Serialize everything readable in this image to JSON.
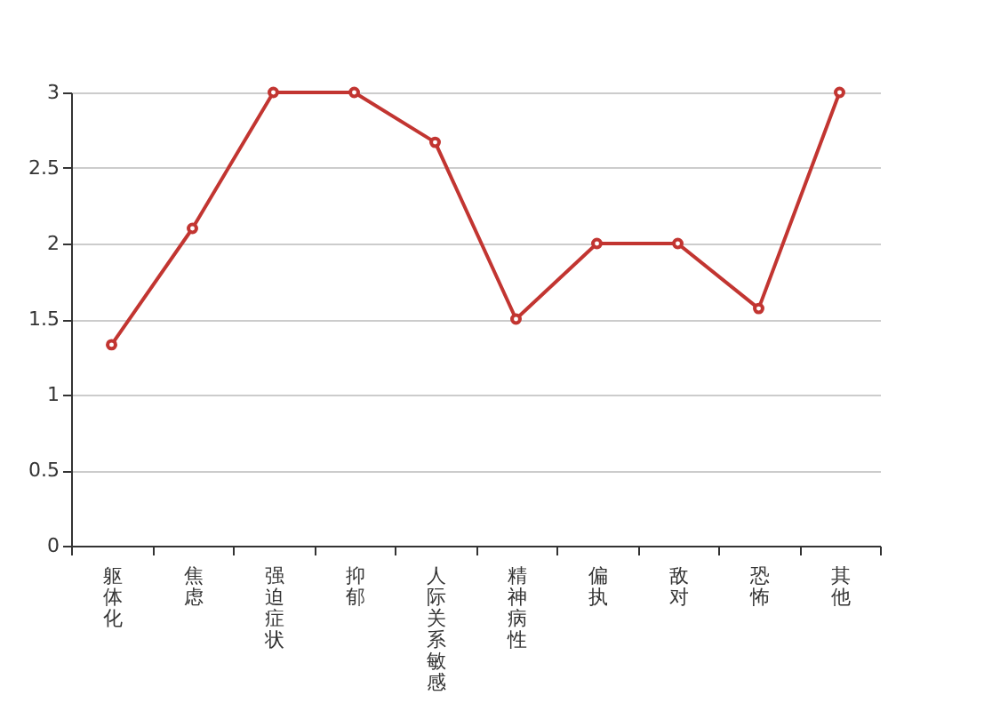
{
  "chart_data": {
    "type": "line",
    "categories": [
      "躯体化",
      "焦虑",
      "强迫症状",
      "抑郁",
      "人际关系敏感",
      "精神病性",
      "偏执",
      "敌对",
      "恐怖",
      "其他"
    ],
    "series": [
      {
        "color": "#c23531",
        "values": [
          1.33,
          2.1,
          3,
          3,
          2.67,
          1.5,
          2,
          2,
          1.57,
          3
        ]
      }
    ],
    "ylim": [
      0,
      3
    ],
    "yticks": [
      0,
      0.5,
      1,
      1.5,
      2,
      2.5,
      3
    ],
    "grid": "y",
    "marker": "circle",
    "line_style": "solid"
  }
}
